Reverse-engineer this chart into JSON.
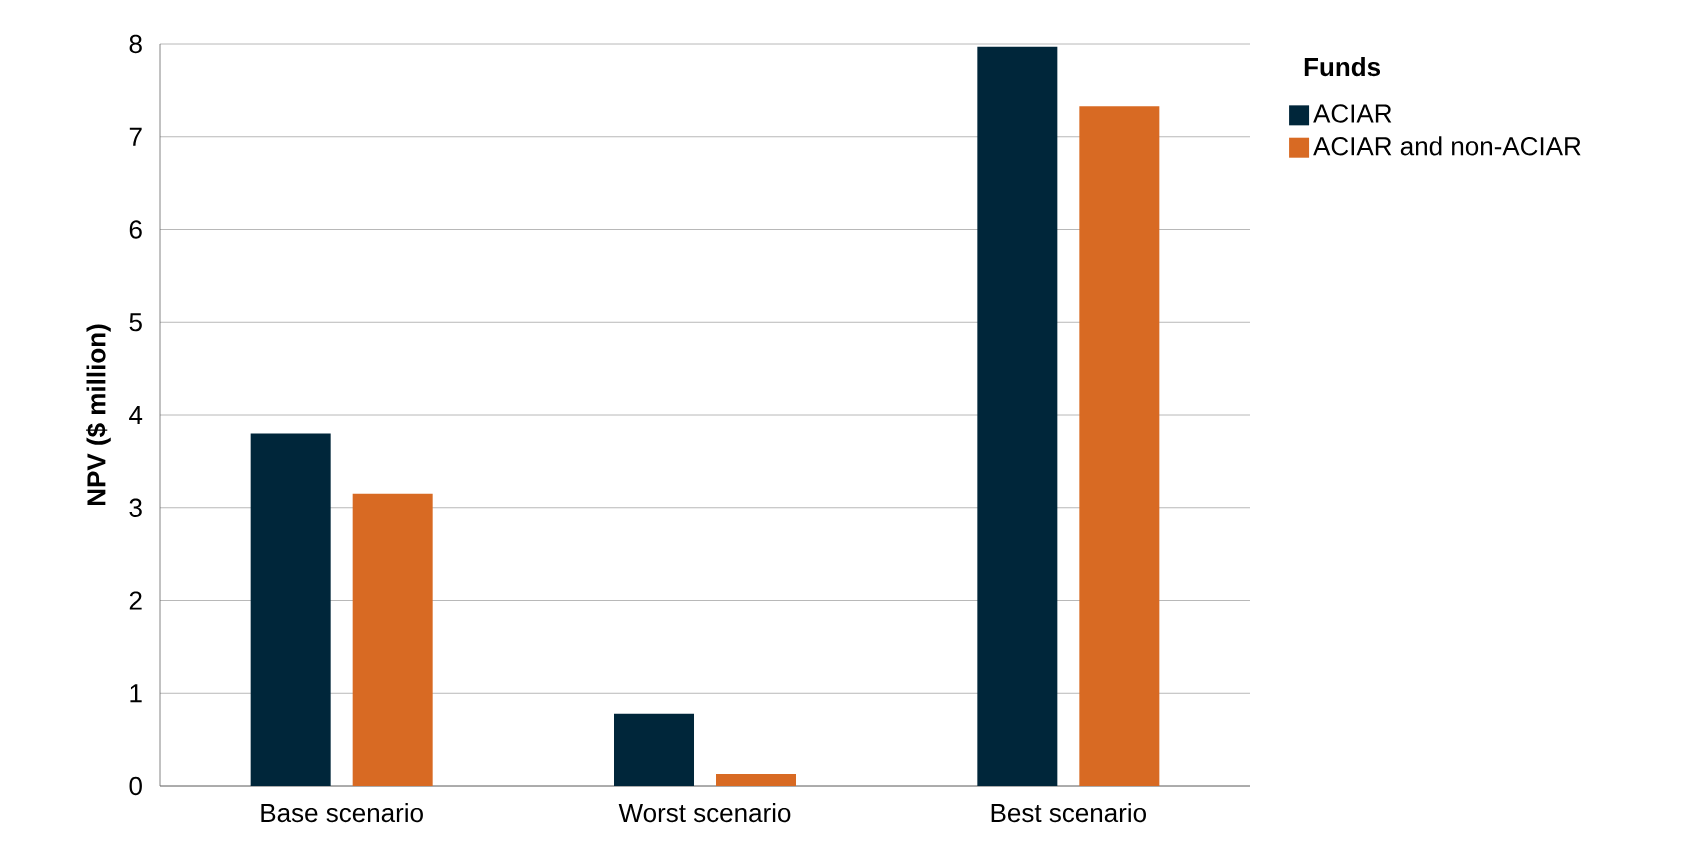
{
  "chart_data": {
    "type": "bar",
    "ylabel": "NPV ($ million)",
    "legend_title": "Funds",
    "legend": "top right",
    "categories": [
      "Base scenario",
      "Worst scenario",
      "Best scenario"
    ],
    "series": [
      {
        "name": "ACIAR",
        "color": "#00263a",
        "values": [
          3.8,
          0.78,
          7.97
        ]
      },
      {
        "name": "ACIAR and non-ACIAR",
        "color": "#d86a23",
        "values": [
          3.15,
          0.13,
          7.33
        ]
      }
    ],
    "ylim": [
      0,
      8
    ],
    "yticks": [
      0,
      1,
      2,
      3,
      4,
      5,
      6,
      7,
      8
    ],
    "grid": "y"
  }
}
